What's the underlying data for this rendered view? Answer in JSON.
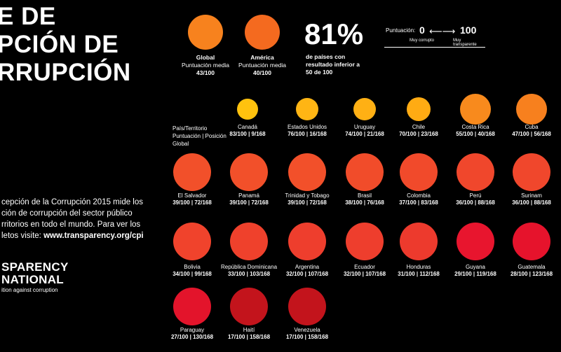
{
  "title": {
    "line1": "E DE",
    "line2": "PCIÓN DE",
    "line3": "RRUPCIÓN"
  },
  "description": {
    "line1": "cepción de la Corrupción 2015 mide los",
    "line2": "ción de corrupción del sector público",
    "line3": "rritorios en todo el mundo. Para ver los",
    "line4_prefix": "letos visite: ",
    "url": "www.transparency.org/cpi"
  },
  "logo": {
    "line1": "SPARENCY",
    "line2": "NATIONAL",
    "tagline": "ition against corruption"
  },
  "summary": {
    "global": {
      "name": "Global",
      "label": "Puntuación media",
      "score": "43/100",
      "color": "#f7821e"
    },
    "america": {
      "name": "América",
      "label": "Puntuación media",
      "score": "40/100",
      "color": "#f46a1f"
    },
    "percent": "81%",
    "percent_text_1": "de países con",
    "percent_text_2": "resultado inferior a",
    "percent_text_3": "50 de 100"
  },
  "scale": {
    "label": "Puntuación:",
    "low": "0",
    "high": "100",
    "low_caption": "Muy corrupto",
    "high_caption": "Muy transparente"
  },
  "legend": {
    "line1": "País/Territorio",
    "line2": "Puntuación | Posición",
    "line3": "Global"
  },
  "countries": [
    {
      "name": "Canadá",
      "score": "83/100",
      "rank": "9/168",
      "value": 83,
      "color": "#ffc20e"
    },
    {
      "name": "Estados Unidos",
      "score": "76/100",
      "rank": "16/168",
      "value": 76,
      "color": "#ffb514"
    },
    {
      "name": "Uruguay",
      "score": "74/100",
      "rank": "21/168",
      "value": 74,
      "color": "#ffb014"
    },
    {
      "name": "Chile",
      "score": "70/100",
      "rank": "23/168",
      "value": 70,
      "color": "#ffab13"
    },
    {
      "name": "Costa Rica",
      "score": "55/100",
      "rank": "40/168",
      "value": 55,
      "color": "#f88a1d"
    },
    {
      "name": "Cuba",
      "score": "47/100",
      "rank": "56/168",
      "value": 47,
      "color": "#f7801e"
    },
    {
      "name": "El Salvador",
      "score": "39/100",
      "rank": "72/168",
      "value": 39,
      "color": "#f2502a"
    },
    {
      "name": "Panamá",
      "score": "39/100",
      "rank": "72/168",
      "value": 39,
      "color": "#f2502a"
    },
    {
      "name": "Trinidad y Tobago",
      "score": "39/100",
      "rank": "72/168",
      "value": 39,
      "color": "#f2502a"
    },
    {
      "name": "Brasil",
      "score": "38/100",
      "rank": "76/168",
      "value": 38,
      "color": "#f14c2a"
    },
    {
      "name": "Colombia",
      "score": "37/100",
      "rank": "83/168",
      "value": 37,
      "color": "#f14a2b"
    },
    {
      "name": "Perú",
      "score": "36/100",
      "rank": "88/168",
      "value": 36,
      "color": "#f0472c"
    },
    {
      "name": "Surinam",
      "score": "36/100",
      "rank": "88/168",
      "value": 36,
      "color": "#f0472c"
    },
    {
      "name": "Bolivia",
      "score": "34/100",
      "rank": "99/168",
      "value": 34,
      "color": "#f0432c"
    },
    {
      "name": "República Dominicana",
      "score": "33/100",
      "rank": "103/168",
      "value": 33,
      "color": "#ef412c"
    },
    {
      "name": "Argentina",
      "score": "32/100",
      "rank": "107/168",
      "value": 32,
      "color": "#ee3e2d"
    },
    {
      "name": "Ecuador",
      "score": "32/100",
      "rank": "107/168",
      "value": 32,
      "color": "#ee3e2d"
    },
    {
      "name": "Honduras",
      "score": "31/100",
      "rank": "112/168",
      "value": 31,
      "color": "#ed3a2d"
    },
    {
      "name": "Guyana",
      "score": "29/100",
      "rank": "119/168",
      "value": 29,
      "color": "#e8152e"
    },
    {
      "name": "Guatemala",
      "score": "28/100",
      "rank": "123/168",
      "value": 28,
      "color": "#e6132c"
    },
    {
      "name": "Paraguay",
      "score": "27/100",
      "rank": "130/168",
      "value": 27,
      "color": "#e3142b"
    },
    {
      "name": "Haití",
      "score": "17/100",
      "rank": "158/168",
      "value": 17,
      "color": "#c3141c"
    },
    {
      "name": "Venezuela",
      "score": "17/100",
      "rank": "158/168",
      "value": 17,
      "color": "#c3141c"
    }
  ]
}
